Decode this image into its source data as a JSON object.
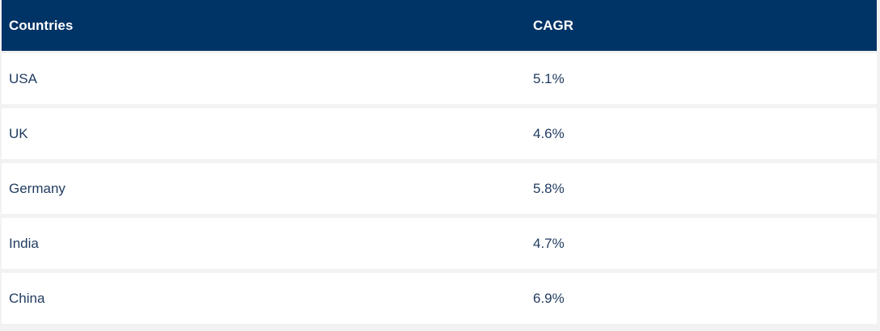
{
  "table": {
    "headers": [
      "Countries",
      "CAGR"
    ],
    "rows": [
      {
        "country": "USA",
        "cagr": "5.1%"
      },
      {
        "country": "UK",
        "cagr": "4.6%"
      },
      {
        "country": "Germany",
        "cagr": "5.8%"
      },
      {
        "country": "India",
        "cagr": "4.7%"
      },
      {
        "country": "China",
        "cagr": "6.9%"
      }
    ]
  },
  "colors": {
    "header_bg": "#003366",
    "header_text": "#ffffff",
    "row_bg": "#ffffff",
    "row_text": "#1f3a5f",
    "separator": "#f2f2f2"
  }
}
